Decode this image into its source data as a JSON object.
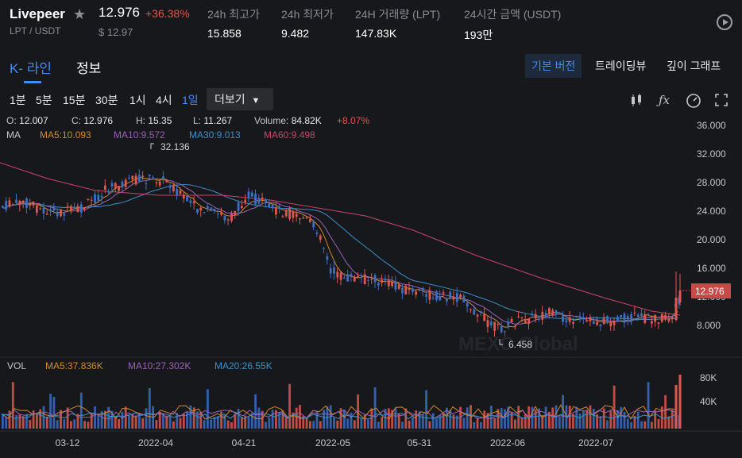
{
  "header": {
    "symbol": "Livepeer",
    "pair": "LPT / USDT",
    "price": "12.976",
    "change": "+36.38%",
    "usd_price": "$ 12.97",
    "stats": [
      {
        "label": "24h 최고가",
        "value": "15.858"
      },
      {
        "label": "24h 최저가",
        "value": "9.482"
      },
      {
        "label": "24H 거래량 (LPT)",
        "value": "147.83K"
      },
      {
        "label": "24시간 금액 (USDT)",
        "value": "193만"
      }
    ]
  },
  "tabs": {
    "kline": "K- 라인",
    "info": "정보"
  },
  "views": [
    "기본 버전",
    "트레이딩뷰",
    "깊이 그래프"
  ],
  "intervals": [
    "1분",
    "5분",
    "15분",
    "30분",
    "1시",
    "4시",
    "1일"
  ],
  "active_interval": "1일",
  "more_label": "더보기",
  "ohlc": {
    "o_label": "O:",
    "o": "12.007",
    "c_label": "C:",
    "c": "12.976",
    "h_label": "H:",
    "h": "15.35",
    "l_label": "L:",
    "l": "11.267",
    "vol_label": "Volume:",
    "vol": "84.82K",
    "pct": "+8.07%"
  },
  "ma_line": {
    "label": "MA",
    "ma5": "MA5:10.093",
    "ma10": "MA10:9.572",
    "ma30": "MA30:9.013",
    "ma60": "MA60:9.498"
  },
  "vol_line": {
    "label": "VOL",
    "ma5": "MA5:37.836K",
    "ma10": "MA10:27.302K",
    "ma20": "MA20:26.55K"
  },
  "price_axis": [
    "36.000",
    "32.000",
    "28.000",
    "24.000",
    "20.000",
    "16.000",
    "12.000",
    "8.000"
  ],
  "vol_axis": [
    "80K",
    "40K"
  ],
  "time_axis": [
    "03-12",
    "2022-04",
    "04-21",
    "2022-05",
    "05-31",
    "2022-06",
    "2022-07"
  ],
  "last_price_tag": "12.976",
  "high_marker": "32.136",
  "low_marker": "6.458",
  "watermark": "MEXC Global",
  "colors": {
    "up": "#e0574f",
    "down": "#3a6fc4",
    "accent": "#3f8cf5",
    "ma5": "#d1892b",
    "ma10": "#9a62b5",
    "ma30": "#3d8fc7",
    "ma60": "#c9436a"
  }
}
